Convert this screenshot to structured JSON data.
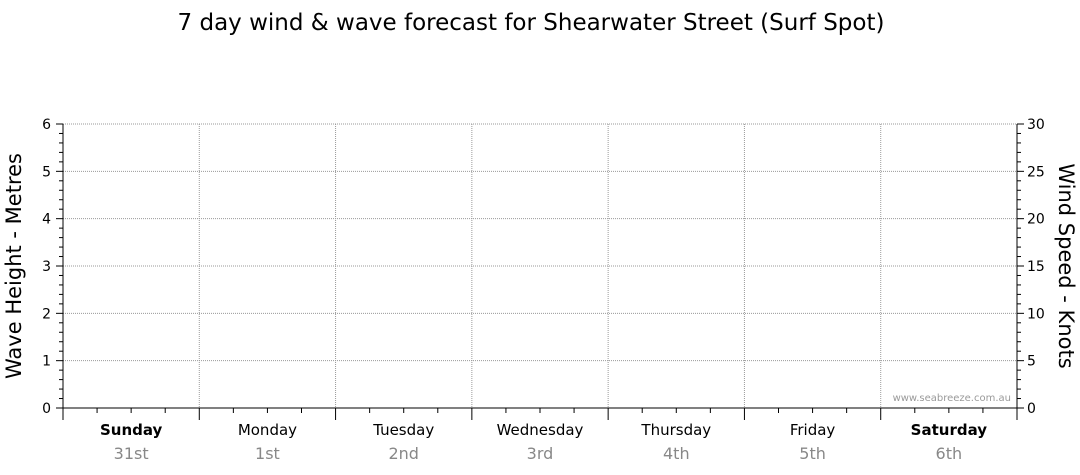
{
  "chart_data": {
    "type": "line",
    "title": "7 day wind & wave forecast for Shearwater Street (Surf Spot)",
    "ylabel": "Wave Height - Metres",
    "y2label": "Wind Speed - Knots",
    "ylim": [
      0,
      6
    ],
    "y2lim": [
      0,
      30
    ],
    "yticks": [
      "0",
      "1",
      "2",
      "3",
      "4",
      "5",
      "6"
    ],
    "y2ticks": [
      "0",
      "5",
      "10",
      "15",
      "20",
      "25",
      "30"
    ],
    "grid": true,
    "days": [
      {
        "name": "Sunday",
        "date": "31st",
        "bold": true
      },
      {
        "name": "Monday",
        "date": "1st",
        "bold": false
      },
      {
        "name": "Tuesday",
        "date": "2nd",
        "bold": false
      },
      {
        "name": "Wednesday",
        "date": "3rd",
        "bold": false
      },
      {
        "name": "Thursday",
        "date": "4th",
        "bold": false
      },
      {
        "name": "Friday",
        "date": "5th",
        "bold": false
      },
      {
        "name": "Saturday",
        "date": "6th",
        "bold": true
      }
    ],
    "series": [],
    "watermark": "www.seabreeze.com.au"
  }
}
